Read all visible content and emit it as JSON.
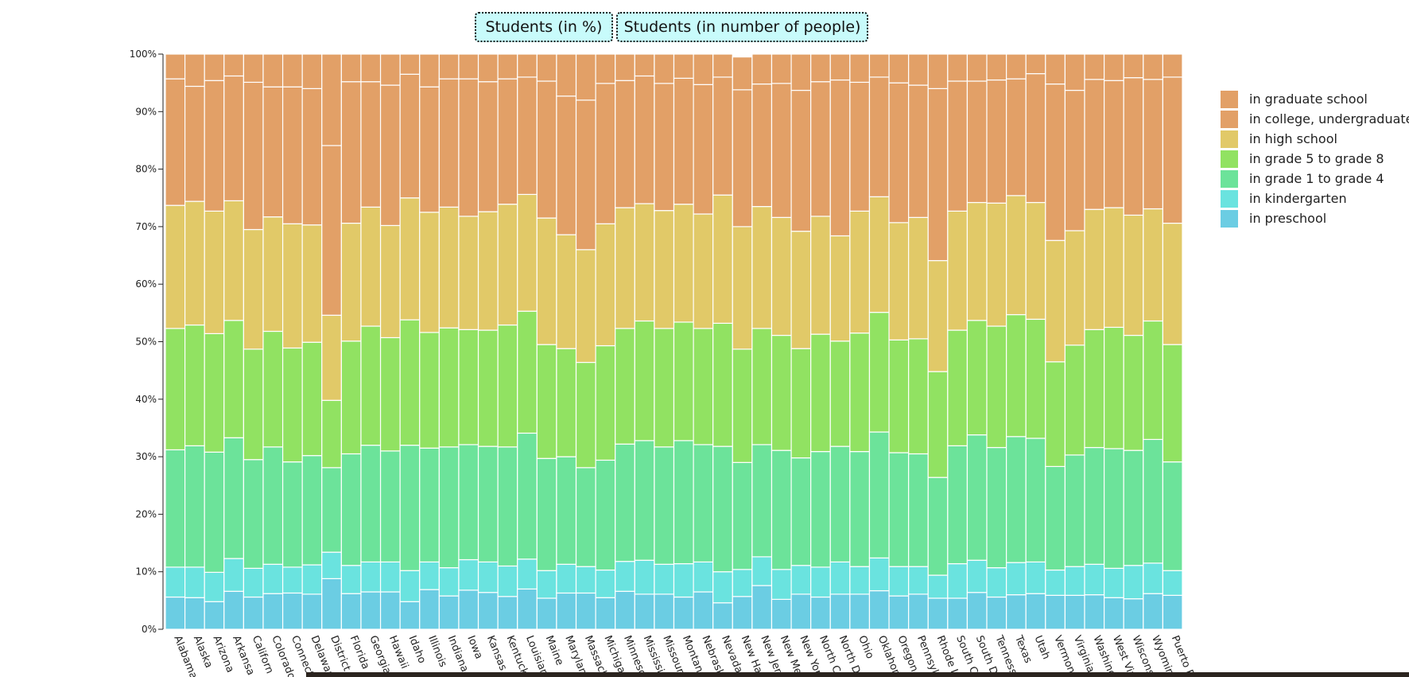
{
  "toolbar": {
    "percent_label": "Students (in %)",
    "people_label": "Students (in number of people)"
  },
  "chart_data": {
    "type": "bar",
    "stacked": true,
    "normalized": true,
    "ylim": [
      0,
      100
    ],
    "ytick_values": [
      0,
      10,
      20,
      30,
      40,
      50,
      60,
      70,
      80,
      90,
      100
    ],
    "ytick_labels": [
      "0%",
      "10%",
      "20%",
      "30%",
      "40%",
      "50%",
      "60%",
      "70%",
      "80%",
      "90%",
      "100%"
    ],
    "legend_position": "right",
    "categories": [
      "Alabama",
      "Alaska",
      "Arizona",
      "Arkansas",
      "California",
      "Colorado",
      "Connecticut",
      "Delaware",
      "District of Columbia",
      "Florida",
      "Georgia",
      "Hawaii",
      "Idaho",
      "Illinois",
      "Indiana",
      "Iowa",
      "Kansas",
      "Kentucky",
      "Louisiana",
      "Maine",
      "Maryland",
      "Massachusetts",
      "Michigan",
      "Minnesota",
      "Mississippi",
      "Missouri",
      "Montana",
      "Nebraska",
      "Nevada",
      "New Hampshire",
      "New Jersey",
      "New Mexico",
      "New York",
      "North Carolina",
      "North Dakota",
      "Ohio",
      "Oklahoma",
      "Oregon",
      "Pennsylvania",
      "Rhode Island",
      "South Carolina",
      "South Dakota",
      "Tennessee",
      "Texas",
      "Utah",
      "Vermont",
      "Virginia",
      "Washington",
      "West Virginia",
      "Wisconsin",
      "Wyoming",
      "Puerto Rico"
    ],
    "category_labels_visible": [
      "Alabama",
      "Alaska",
      "Arizona",
      "Arkansa",
      "Californ",
      "Colorado",
      "Connecti",
      "Delawar",
      "District o",
      "Florida",
      "Georgia",
      "Hawaii",
      "Idaho",
      "Illinois",
      "Indiana",
      "Iowa",
      "Kansas",
      "Kentuck",
      "Louisian",
      "Maine",
      "Marylan",
      "Massach",
      "Michigan",
      "Minneso",
      "Mississip",
      "Missouri",
      "Montana",
      "Nebrask",
      "Nevada",
      "New Ha",
      "New Jer",
      "New Me",
      "New Yor",
      "North C",
      "North D",
      "Ohio",
      "Oklahom",
      "Oregon",
      "Pennsylv",
      "Rhode Is",
      "South C",
      "South D",
      "Tenness",
      "Texas",
      "Utah",
      "Vermont",
      "Virginia",
      "Washing",
      "West Vir",
      "Wiscons",
      "Wyomin",
      "Puerto R"
    ],
    "series": [
      {
        "name": "in preschool",
        "color": "#6bcde3",
        "values": [
          5.6,
          5.5,
          4.8,
          6.6,
          5.6,
          6.2,
          6.3,
          6.1,
          8.8,
          6.2,
          6.5,
          6.5,
          4.8,
          6.9,
          5.8,
          6.8,
          6.4,
          5.7,
          7.0,
          5.4,
          6.3,
          6.3,
          5.5,
          6.6,
          6.1,
          6.1,
          5.6,
          6.5,
          4.6,
          5.7,
          7.6,
          5.2,
          6.1,
          5.6,
          6.1,
          6.1,
          6.7,
          5.8,
          6.1,
          5.4,
          5.4,
          6.4,
          5.6,
          6.0,
          6.2,
          5.9,
          5.9,
          6.0,
          5.5,
          5.3,
          6.2,
          5.9
        ]
      },
      {
        "name": "in kindergarten",
        "color": "#6ae3df",
        "values": [
          5.2,
          5.3,
          5.1,
          5.7,
          5.0,
          5.1,
          4.5,
          5.1,
          4.6,
          4.9,
          5.2,
          5.2,
          5.4,
          4.8,
          4.9,
          5.3,
          5.3,
          5.3,
          5.2,
          4.8,
          5.0,
          4.6,
          4.8,
          5.2,
          5.9,
          5.2,
          5.8,
          5.2,
          5.4,
          4.7,
          5.0,
          5.2,
          5.0,
          5.2,
          5.6,
          4.8,
          5.7,
          5.1,
          4.8,
          4.0,
          6.0,
          5.6,
          5.1,
          5.6,
          5.5,
          4.4,
          5.0,
          5.3,
          5.1,
          5.8,
          5.3,
          4.3
        ]
      },
      {
        "name": "in grade 1 to grade 4",
        "color": "#6ce39a",
        "values": [
          20.4,
          21.1,
          20.9,
          21.0,
          18.9,
          20.4,
          18.3,
          19.0,
          14.7,
          19.4,
          20.3,
          19.3,
          21.8,
          19.8,
          21.0,
          20.0,
          20.1,
          20.7,
          21.9,
          19.5,
          18.7,
          17.2,
          19.1,
          20.4,
          20.8,
          20.4,
          21.4,
          20.4,
          21.8,
          18.6,
          19.5,
          20.7,
          18.7,
          20.1,
          20.1,
          20.0,
          21.9,
          19.8,
          19.6,
          17.0,
          20.5,
          21.8,
          20.9,
          21.9,
          21.5,
          18.0,
          19.4,
          20.3,
          20.8,
          20.0,
          21.5,
          18.9
        ]
      },
      {
        "name": "in grade 5 to grade 8",
        "color": "#91e262",
        "values": [
          21.1,
          21.0,
          20.6,
          20.4,
          19.2,
          20.1,
          19.8,
          19.7,
          11.7,
          19.6,
          20.7,
          19.7,
          21.8,
          20.1,
          20.7,
          20.0,
          20.2,
          21.2,
          21.2,
          19.8,
          18.8,
          18.3,
          19.9,
          20.1,
          20.8,
          20.6,
          20.6,
          20.2,
          21.4,
          19.7,
          20.2,
          20.0,
          19.0,
          20.4,
          18.3,
          20.6,
          20.8,
          19.6,
          20.0,
          18.4,
          20.1,
          19.9,
          21.1,
          21.2,
          20.7,
          18.2,
          19.1,
          20.5,
          21.1,
          20.0,
          20.6,
          20.4
        ]
      },
      {
        "name": "in high school",
        "color": "#e1c968",
        "values": [
          21.4,
          21.5,
          21.3,
          20.8,
          20.8,
          19.9,
          21.6,
          20.4,
          14.8,
          20.5,
          20.7,
          19.5,
          21.2,
          20.9,
          21.0,
          19.7,
          20.6,
          21.0,
          20.3,
          22.0,
          19.8,
          19.6,
          21.2,
          21.0,
          20.4,
          20.5,
          20.5,
          19.9,
          22.3,
          21.3,
          21.2,
          20.5,
          20.4,
          20.5,
          18.3,
          21.2,
          20.1,
          20.4,
          21.1,
          19.3,
          20.7,
          20.5,
          21.4,
          20.7,
          20.3,
          21.1,
          19.9,
          20.9,
          20.8,
          20.9,
          19.5,
          21.1
        ]
      },
      {
        "name": "in college, undergraduate",
        "color": "#e2a067",
        "values": [
          22.0,
          20.0,
          22.7,
          21.7,
          25.6,
          22.6,
          23.8,
          23.7,
          29.5,
          24.6,
          21.8,
          24.4,
          21.5,
          21.8,
          22.3,
          23.9,
          22.6,
          21.8,
          20.4,
          23.8,
          24.1,
          26.0,
          24.4,
          22.1,
          22.2,
          22.1,
          21.9,
          22.5,
          20.5,
          23.8,
          21.3,
          23.3,
          24.5,
          23.4,
          27.1,
          22.4,
          20.8,
          24.3,
          23.0,
          29.9,
          22.6,
          21.1,
          21.4,
          20.3,
          22.4,
          27.2,
          24.4,
          22.6,
          22.1,
          23.9,
          22.5,
          25.4
        ]
      },
      {
        "name": "in graduate school",
        "color": "#e2a067",
        "values": [
          4.3,
          5.6,
          4.6,
          3.8,
          4.9,
          5.7,
          5.7,
          6.0,
          15.9,
          4.8,
          4.8,
          5.4,
          3.5,
          5.7,
          4.3,
          4.3,
          4.8,
          4.3,
          4.0,
          4.7,
          7.3,
          8.0,
          5.1,
          4.6,
          3.8,
          5.1,
          4.2,
          5.3,
          4.0,
          5.7,
          5.2,
          5.1,
          6.3,
          4.8,
          4.5,
          4.9,
          4.0,
          5.0,
          5.4,
          6.0,
          4.7,
          4.7,
          4.5,
          4.3,
          3.4,
          5.2,
          6.3,
          4.4,
          4.6,
          4.1,
          4.4,
          4.0
        ]
      }
    ]
  }
}
